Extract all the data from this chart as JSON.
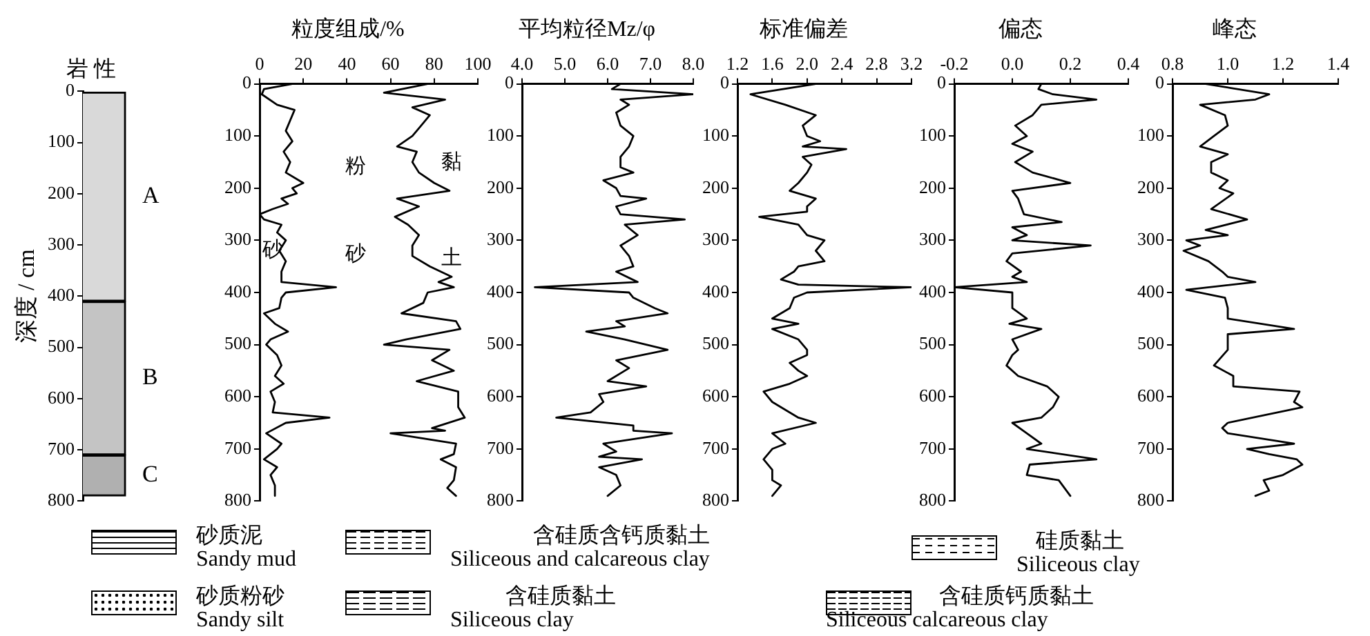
{
  "chart_data": [
    {
      "type": "bar",
      "title": "岩 性",
      "ylabel": "深度 / cm",
      "stacked": true,
      "categories": [
        null
      ],
      "ylim": [
        800,
        0
      ],
      "yticks": [
        0,
        100,
        200,
        300,
        400,
        500,
        600,
        700,
        800
      ],
      "series": [
        {
          "name": "A",
          "color": "#d9d9d9",
          "values": [
            410
          ]
        },
        {
          "name": "B",
          "color": "#c4c4c4",
          "values": [
            300
          ]
        },
        {
          "name": "C",
          "color": "#b0b0b0",
          "values": [
            80
          ]
        }
      ],
      "annotations": [
        "砂质泥",
        "Sandy mud",
        "砂质粉砂",
        "Sandy silt",
        "含硅质含钙质黏土",
        "Siliceous and calcareous clay",
        "含硅质黏土",
        "Siliceous clay",
        "硅质黏土",
        "Siliceous clay",
        "含硅质钙质黏土",
        "Siliceous calcareous clay"
      ]
    },
    {
      "type": "line",
      "title": "粒度组成/%",
      "orientation": "horizontal",
      "marker": "none",
      "line_style": "solid",
      "xlim": [
        0,
        100
      ],
      "xticks": [
        0,
        20,
        40,
        60,
        80,
        100
      ],
      "ylim": [
        800,
        0
      ],
      "yticks": [
        0,
        100,
        200,
        300,
        400,
        500,
        600,
        700,
        800
      ],
      "series": [
        {
          "color": "#000000",
          "x": [
            0,
            10,
            20,
            40,
            50,
            70,
            90,
            110,
            130,
            150,
            170,
            190,
            200,
            210,
            220,
            230,
            240,
            250,
            260,
            270,
            285,
            300,
            320,
            340,
            360,
            380,
            390,
            400,
            410,
            430,
            440,
            460,
            475,
            490,
            500,
            520,
            540,
            560,
            575,
            590,
            610,
            630,
            640,
            650,
            670,
            690,
            700,
            720,
            735,
            750,
            770,
            790
          ],
          "values": [
            15,
            2,
            1,
            8,
            16,
            14,
            12,
            15,
            11,
            14,
            12,
            20,
            15,
            17,
            10,
            13,
            6,
            0,
            2,
            10,
            8,
            12,
            9,
            12,
            10,
            10,
            35,
            12,
            10,
            9,
            2,
            7,
            13,
            5,
            3,
            8,
            10,
            7,
            11,
            5,
            7,
            6,
            32,
            12,
            3,
            10,
            8,
            2,
            8,
            5,
            7,
            7
          ]
        },
        {
          "color": "#000000",
          "x": [
            0,
            17,
            30,
            45,
            60,
            80,
            100,
            120,
            130,
            150,
            170,
            190,
            205,
            220,
            235,
            255,
            270,
            290,
            310,
            330,
            350,
            370,
            380,
            390,
            400,
            420,
            440,
            455,
            470,
            490,
            500,
            510,
            530,
            550,
            570,
            590,
            620,
            640,
            660,
            665,
            670,
            690,
            710,
            720,
            735,
            760,
            775,
            790
          ],
          "values": [
            77,
            57,
            85,
            70,
            78,
            74,
            70,
            63,
            72,
            70,
            73,
            80,
            87,
            63,
            73,
            62,
            68,
            73,
            70,
            70,
            78,
            88,
            82,
            89,
            77,
            75,
            65,
            90,
            92,
            67,
            57,
            87,
            79,
            89,
            72,
            91,
            91,
            94,
            79,
            85,
            60,
            90,
            89,
            83,
            90,
            89,
            86,
            90
          ]
        }
      ],
      "annotations": [
        "砂",
        "粉",
        "砂",
        "黏",
        "土"
      ]
    },
    {
      "type": "line",
      "title": "平均粒径Mz/φ",
      "orientation": "horizontal",
      "marker": "none",
      "line_style": "solid",
      "xlim": [
        4,
        8
      ],
      "xticks": [
        {
          "value": 4,
          "label": "4.0"
        },
        {
          "value": 5,
          "label": "5.0"
        },
        {
          "value": 6,
          "label": "6.0"
        },
        {
          "value": 7,
          "label": "7.0"
        },
        {
          "value": 8,
          "label": "8.0"
        }
      ],
      "ylim": [
        800,
        0
      ],
      "yticks": [
        0,
        100,
        200,
        300,
        400,
        500,
        600,
        700,
        800
      ],
      "series": [
        {
          "color": "#000000",
          "x": [
            0,
            10,
            20,
            30,
            40,
            55,
            80,
            100,
            120,
            140,
            160,
            170,
            185,
            200,
            215,
            220,
            235,
            250,
            260,
            270,
            290,
            310,
            330,
            350,
            360,
            380,
            390,
            400,
            410,
            430,
            440,
            455,
            465,
            475,
            490,
            510,
            530,
            545,
            570,
            580,
            595,
            610,
            630,
            640,
            655,
            665,
            670,
            690,
            705,
            715,
            720,
            735,
            750,
            770,
            790
          ],
          "values": [
            6.3,
            6.1,
            8.0,
            6.3,
            6.5,
            6.2,
            6.3,
            6.6,
            6.5,
            6.3,
            6.3,
            6.6,
            5.9,
            6.2,
            6.3,
            6.9,
            6.2,
            6.3,
            7.8,
            6.4,
            6.7,
            6.3,
            6.5,
            6.6,
            6.2,
            6.7,
            4.3,
            6.5,
            6.6,
            7.1,
            7.4,
            6.2,
            6.4,
            5.5,
            6.4,
            7.4,
            6.2,
            6.5,
            6.0,
            6.9,
            5.8,
            5.9,
            5.6,
            4.8,
            6.6,
            6.6,
            7.5,
            5.9,
            6.2,
            5.8,
            6.8,
            5.8,
            6.2,
            6.3,
            6.0
          ]
        }
      ]
    },
    {
      "type": "line",
      "title": "标准偏差",
      "orientation": "horizontal",
      "marker": "none",
      "line_style": "solid",
      "xlim": [
        1.2,
        3.2
      ],
      "xticks": [
        1.2,
        1.6,
        {
          "value": 2,
          "label": "2.0"
        },
        2.4,
        2.8,
        3.2
      ],
      "ylim": [
        800,
        0
      ],
      "yticks": [
        0,
        100,
        200,
        300,
        400,
        500,
        600,
        700,
        800
      ],
      "series": [
        {
          "color": "#000000",
          "x": [
            0,
            20,
            40,
            60,
            80,
            100,
            110,
            120,
            125,
            140,
            155,
            170,
            190,
            205,
            220,
            235,
            245,
            255,
            270,
            290,
            300,
            320,
            340,
            350,
            360,
            375,
            385,
            390,
            400,
            410,
            430,
            450,
            460,
            470,
            490,
            510,
            520,
            535,
            550,
            560,
            575,
            590,
            610,
            640,
            650,
            670,
            690,
            700,
            720,
            740,
            760,
            770,
            790
          ],
          "values": [
            2.1,
            1.35,
            1.75,
            2.1,
            1.95,
            2.0,
            2.15,
            1.95,
            2.45,
            1.95,
            2.05,
            2.0,
            1.9,
            1.8,
            2.1,
            2.0,
            2.0,
            1.45,
            1.9,
            2.0,
            2.2,
            2.1,
            2.2,
            1.9,
            1.85,
            1.7,
            1.9,
            3.2,
            2.0,
            1.85,
            1.8,
            1.6,
            1.9,
            1.6,
            1.9,
            2.0,
            2.0,
            1.8,
            1.9,
            2.0,
            1.8,
            1.5,
            1.6,
            1.9,
            2.1,
            1.6,
            1.75,
            1.6,
            1.5,
            1.6,
            1.6,
            1.7,
            1.6
          ]
        }
      ]
    },
    {
      "type": "line",
      "title": "偏态",
      "orientation": "horizontal",
      "marker": "none",
      "line_style": "solid",
      "xlim": [
        -0.2,
        0.4
      ],
      "xticks": [
        -0.2,
        {
          "value": 0,
          "label": "0.0"
        },
        0.2,
        0.4
      ],
      "ylim": [
        800,
        0
      ],
      "yticks": [
        0,
        100,
        200,
        300,
        400,
        500,
        600,
        700,
        800
      ],
      "series": [
        {
          "color": "#000000",
          "x": [
            0,
            10,
            20,
            30,
            40,
            60,
            80,
            100,
            115,
            130,
            150,
            170,
            190,
            205,
            220,
            250,
            265,
            275,
            290,
            300,
            310,
            325,
            340,
            360,
            370,
            380,
            390,
            400,
            430,
            450,
            460,
            470,
            490,
            510,
            520,
            540,
            560,
            580,
            600,
            620,
            640,
            650,
            670,
            690,
            700,
            720,
            730,
            750,
            760,
            790
          ],
          "values": [
            0.1,
            0.09,
            0.14,
            0.29,
            0.1,
            0.07,
            0.01,
            0.05,
            0.0,
            0.07,
            0.01,
            0.07,
            0.2,
            0.0,
            0.02,
            0.04,
            0.17,
            0.0,
            0.05,
            0.0,
            0.27,
            0.0,
            -0.02,
            0.03,
            0.0,
            0.05,
            -0.2,
            0.0,
            0.0,
            0.05,
            -0.01,
            0.1,
            0.0,
            0.02,
            0.0,
            -0.02,
            0.02,
            0.12,
            0.16,
            0.14,
            0.1,
            0.0,
            0.05,
            0.1,
            0.05,
            0.29,
            0.06,
            0.05,
            0.16,
            0.2
          ]
        }
      ]
    },
    {
      "type": "line",
      "title": "峰态",
      "orientation": "horizontal",
      "marker": "none",
      "line_style": "solid",
      "xlim": [
        0.8,
        1.4
      ],
      "xticks": [
        0.8,
        {
          "value": 1,
          "label": "1.0"
        },
        1.2,
        1.4
      ],
      "ylim": [
        800,
        0
      ],
      "yticks": [
        0,
        100,
        200,
        300,
        400,
        500,
        600,
        700,
        800
      ],
      "series": [
        {
          "color": "#000000",
          "x": [
            0,
            20,
            30,
            40,
            60,
            80,
            100,
            120,
            135,
            150,
            170,
            185,
            200,
            210,
            240,
            260,
            280,
            290,
            300,
            310,
            320,
            340,
            360,
            370,
            380,
            395,
            410,
            430,
            450,
            470,
            480,
            510,
            540,
            560,
            580,
            590,
            610,
            620,
            650,
            660,
            670,
            690,
            700,
            710,
            720,
            730,
            750,
            760,
            780,
            790
          ],
          "values": [
            0.92,
            1.15,
            1.1,
            0.9,
            0.99,
            1.0,
            0.95,
            0.9,
            1.0,
            0.94,
            0.94,
            1.0,
            0.97,
            1.02,
            0.94,
            1.07,
            0.92,
            1.0,
            0.85,
            0.9,
            0.84,
            0.93,
            0.98,
            1.0,
            1.1,
            0.85,
            0.99,
            1.0,
            1.0,
            1.24,
            1.0,
            1.0,
            0.95,
            1.02,
            1.02,
            1.26,
            1.24,
            1.27,
            1.0,
            0.98,
            1.0,
            1.24,
            1.07,
            1.15,
            1.25,
            1.27,
            1.2,
            1.13,
            1.15,
            1.1
          ]
        }
      ]
    }
  ]
}
